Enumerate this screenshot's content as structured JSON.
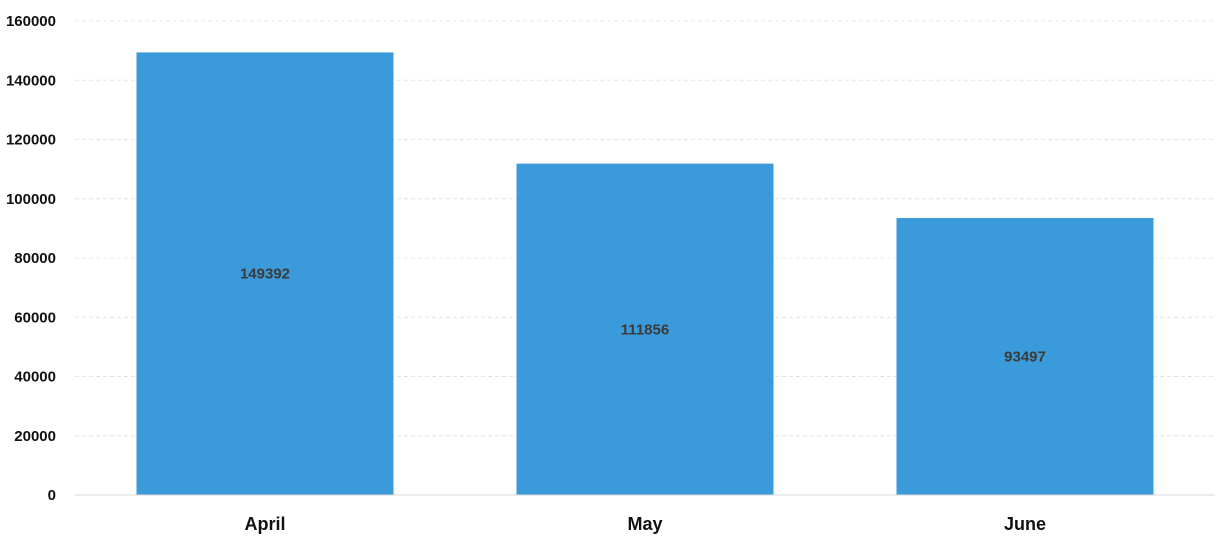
{
  "chart_data": {
    "type": "bar",
    "categories": [
      "April",
      "May",
      "June"
    ],
    "values": [
      149392,
      111856,
      93497
    ],
    "data_labels": [
      "149392",
      "111856",
      "93497"
    ],
    "title": "",
    "xlabel": "",
    "ylabel": "",
    "ylim": [
      0,
      160000
    ],
    "yticks": [
      0,
      20000,
      40000,
      60000,
      80000,
      100000,
      120000,
      140000,
      160000
    ],
    "ytick_labels": [
      "0",
      "20000",
      "40000",
      "60000",
      "80000",
      "100000",
      "120000",
      "140000",
      "160000"
    ],
    "grid": true,
    "legend": "none",
    "bar_color": "#3b9ad9"
  }
}
